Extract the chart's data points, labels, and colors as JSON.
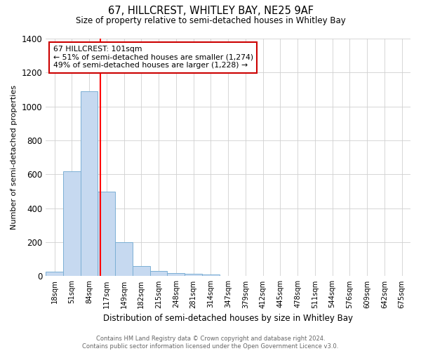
{
  "title": "67, HILLCREST, WHITLEY BAY, NE25 9AF",
  "subtitle": "Size of property relative to semi-detached houses in Whitley Bay",
  "xlabel": "Distribution of semi-detached houses by size in Whitley Bay",
  "ylabel": "Number of semi-detached properties",
  "bin_labels": [
    "18sqm",
    "51sqm",
    "84sqm",
    "117sqm",
    "149sqm",
    "182sqm",
    "215sqm",
    "248sqm",
    "281sqm",
    "314sqm",
    "347sqm",
    "379sqm",
    "412sqm",
    "445sqm",
    "478sqm",
    "511sqm",
    "544sqm",
    "576sqm",
    "609sqm",
    "642sqm",
    "675sqm"
  ],
  "bar_heights": [
    25,
    620,
    1090,
    500,
    200,
    60,
    30,
    20,
    15,
    10,
    0,
    0,
    0,
    0,
    0,
    0,
    0,
    0,
    0,
    0,
    0
  ],
  "bar_color": "#c6d9f0",
  "bar_edge_color": "#7bafd4",
  "red_line_x": 2.636,
  "annotation_line1": "67 HILLCREST: 101sqm",
  "annotation_line2": "← 51% of semi-detached houses are smaller (1,274)",
  "annotation_line3": "49% of semi-detached houses are larger (1,228) →",
  "annotation_box_color": "#ffffff",
  "annotation_box_edge": "#cc0000",
  "ylim": [
    0,
    1400
  ],
  "yticks": [
    0,
    200,
    400,
    600,
    800,
    1000,
    1200,
    1400
  ],
  "footer_line1": "Contains HM Land Registry data © Crown copyright and database right 2024.",
  "footer_line2": "Contains public sector information licensed under the Open Government Licence v3.0.",
  "background_color": "#ffffff",
  "grid_color": "#d0d0d0"
}
